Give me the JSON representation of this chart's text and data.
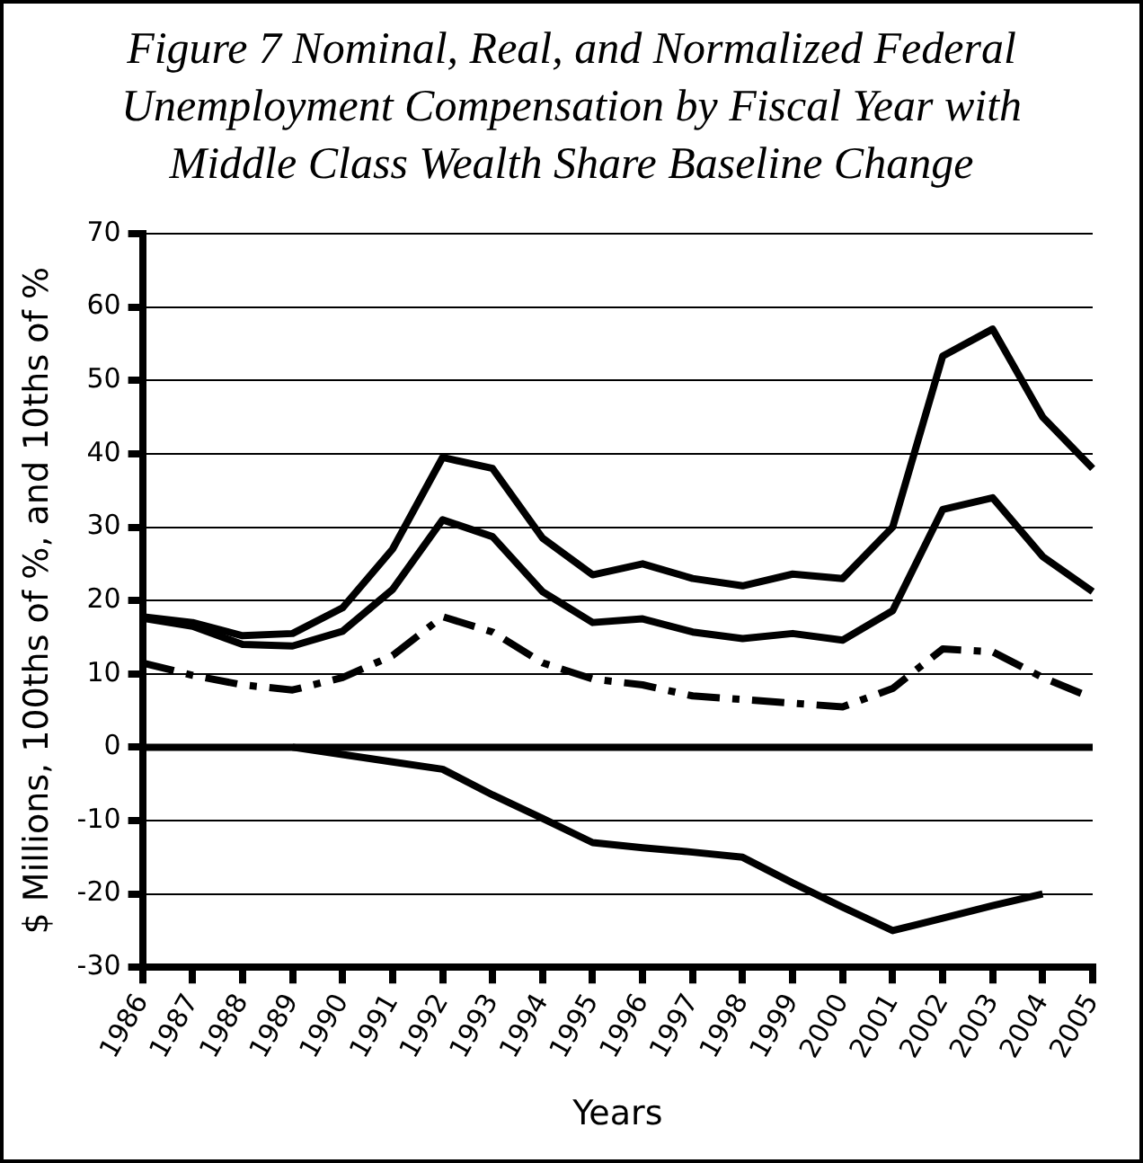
{
  "chart_data": {
    "type": "line",
    "title": "Figure 7  Nominal, Real, and Normalized Federal Unemployment Compensation by Fiscal Year with Middle Class Wealth Share Baseline Change",
    "xlabel": "Years",
    "ylabel": "$ Millions, 100ths of %, and 10ths of %",
    "categories": [
      "1986",
      "1987",
      "1988",
      "1989",
      "1990",
      "1991",
      "1992",
      "1993",
      "1994",
      "1995",
      "1996",
      "1997",
      "1998",
      "1999",
      "2000",
      "2001",
      "2002",
      "2003",
      "2004",
      "2005"
    ],
    "series": [
      {
        "color": "#000000",
        "line_style": "solid",
        "values": [
          17.8,
          17,
          15.2,
          15.5,
          19,
          27,
          39.5,
          38,
          28.5,
          23.5,
          25,
          23,
          22,
          23.6,
          23,
          30,
          53.3,
          57,
          45,
          38
        ]
      },
      {
        "color": "#000000",
        "line_style": "solid",
        "values": [
          17.6,
          16.5,
          14,
          13.8,
          15.8,
          21.5,
          31,
          28.7,
          21.2,
          17,
          17.5,
          15.7,
          14.8,
          15.5,
          14.6,
          18.6,
          32.4,
          34,
          26,
          21.2
        ]
      },
      {
        "color": "#000000",
        "line_style": "dashed",
        "values": [
          11.5,
          9.8,
          8.5,
          7.8,
          9.5,
          12.5,
          17.8,
          15.7,
          11.5,
          9.3,
          8.5,
          7,
          6.5,
          6,
          5.5,
          8,
          13.4,
          13,
          9.5,
          6.7
        ]
      },
      {
        "color": "#000000",
        "line_style": "solid",
        "values": [
          null,
          null,
          null,
          0,
          -1,
          -2,
          -3,
          -6.5,
          -9.7,
          -13,
          -13.7,
          -14.3,
          -15,
          -18.5,
          -21.8,
          -25,
          -23.3,
          -21.6,
          -20,
          null
        ]
      }
    ],
    "ylim": [
      -30,
      70
    ],
    "yticks": [
      -30,
      -20,
      -10,
      0,
      10,
      20,
      30,
      40,
      50,
      60,
      70
    ],
    "grid": "y",
    "legend": false,
    "marker": "none",
    "ref_lines": [
      {
        "axis": "y",
        "value": 0,
        "color": "#000000"
      }
    ]
  }
}
